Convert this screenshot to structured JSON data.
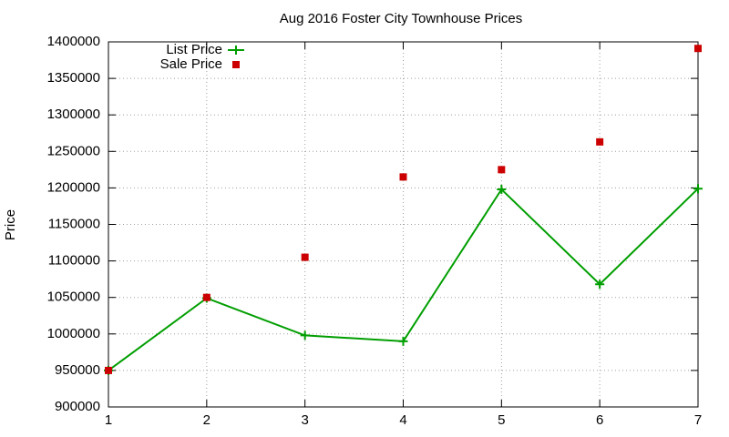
{
  "chart_data": {
    "type": "line",
    "title": "Aug 2016 Foster City Townhouse Prices",
    "y_label": "Price",
    "x": [
      1,
      2,
      3,
      4,
      5,
      6,
      7
    ],
    "series": [
      {
        "name": "List Price",
        "color": "#009e00",
        "style": "linespoints",
        "values": [
          950000,
          1049000,
          998000,
          990000,
          1198000,
          1068000,
          1199000
        ]
      },
      {
        "name": "Sale Price",
        "color": "#cc0000",
        "style": "points",
        "values": [
          950000,
          1050000,
          1105000,
          1215000,
          1225000,
          1263000,
          1391000
        ]
      }
    ],
    "xlim": [
      1,
      7
    ],
    "xticks": [
      1,
      2,
      3,
      4,
      5,
      6,
      7
    ],
    "ylim": [
      900000,
      1400000
    ],
    "yticks": [
      900000,
      950000,
      1000000,
      1050000,
      1100000,
      1150000,
      1200000,
      1250000,
      1300000,
      1350000,
      1400000
    ],
    "grid": true,
    "legend": "top-left"
  }
}
